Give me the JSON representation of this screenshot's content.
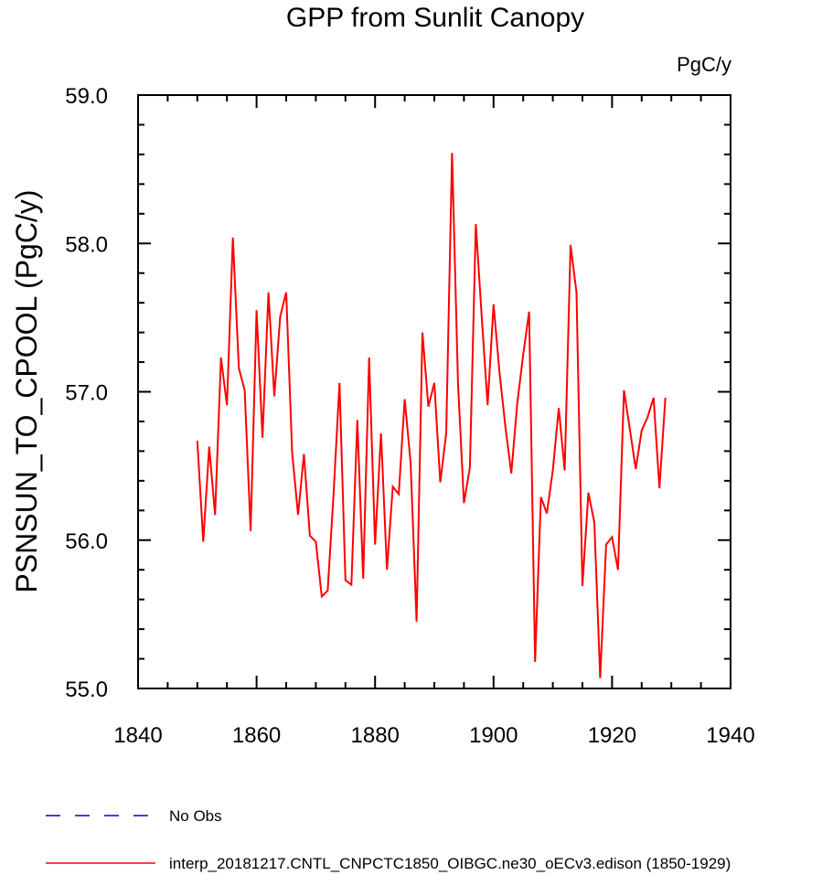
{
  "chart_data": {
    "type": "line",
    "title": "GPP from Sunlit Canopy",
    "units": "PgC/y",
    "ylabel": "PSNSUN_TO_CPOOL  (PgC/y)",
    "xlabel": "",
    "xlim": [
      1840,
      1940
    ],
    "ylim": [
      55.0,
      59.0
    ],
    "x_ticks": [
      1840,
      1860,
      1880,
      1900,
      1920,
      1940
    ],
    "x_tick_labels": [
      "1840",
      "1860",
      "1880",
      "1900",
      "1920",
      "1940"
    ],
    "y_ticks": [
      55.0,
      56.0,
      57.0,
      58.0,
      59.0
    ],
    "y_tick_labels": [
      "55.0",
      "56.0",
      "57.0",
      "58.0",
      "59.0"
    ],
    "grid": false,
    "legend_position": "bottom",
    "series": [
      {
        "name": "No Obs",
        "color": "#0000cc",
        "dash": "dashed",
        "x": [],
        "y": []
      },
      {
        "name": "interp_20181217.CNTL_CNPCTC1850_OIBGC.ne30_oECv3.edison (1850-1929)",
        "color": "#ff0000",
        "dash": "solid",
        "x": [
          1850,
          1851,
          1852,
          1853,
          1854,
          1855,
          1856,
          1857,
          1858,
          1859,
          1860,
          1861,
          1862,
          1863,
          1864,
          1865,
          1866,
          1867,
          1868,
          1869,
          1870,
          1871,
          1872,
          1873,
          1874,
          1875,
          1876,
          1877,
          1878,
          1879,
          1880,
          1881,
          1882,
          1883,
          1884,
          1885,
          1886,
          1887,
          1888,
          1889,
          1890,
          1891,
          1892,
          1893,
          1894,
          1895,
          1896,
          1897,
          1898,
          1899,
          1900,
          1901,
          1902,
          1903,
          1904,
          1905,
          1906,
          1907,
          1908,
          1909,
          1910,
          1911,
          1912,
          1913,
          1914,
          1915,
          1916,
          1917,
          1918,
          1919,
          1920,
          1921,
          1922,
          1923,
          1924,
          1925,
          1926,
          1927,
          1928,
          1929
        ],
        "y": [
          56.67,
          55.99,
          56.63,
          56.17,
          57.23,
          56.91,
          58.04,
          57.16,
          57.01,
          56.06,
          57.55,
          56.69,
          57.67,
          56.97,
          57.51,
          57.67,
          56.59,
          56.17,
          56.58,
          56.03,
          55.99,
          55.62,
          55.66,
          56.31,
          57.06,
          55.73,
          55.7,
          56.81,
          55.74,
          57.23,
          55.97,
          56.72,
          55.8,
          56.36,
          56.31,
          56.95,
          56.52,
          55.45,
          57.4,
          56.9,
          57.06,
          56.39,
          56.72,
          58.61,
          57.06,
          56.25,
          56.49,
          58.13,
          57.51,
          56.91,
          57.59,
          57.13,
          56.76,
          56.45,
          56.92,
          57.25,
          57.54,
          55.18,
          56.29,
          56.18,
          56.47,
          56.89,
          56.47,
          57.99,
          57.67,
          55.69,
          56.32,
          56.12,
          55.07,
          55.97,
          56.02,
          55.8,
          57.01,
          56.75,
          56.48,
          56.74,
          56.83,
          56.96,
          56.35,
          56.96
        ]
      }
    ]
  }
}
